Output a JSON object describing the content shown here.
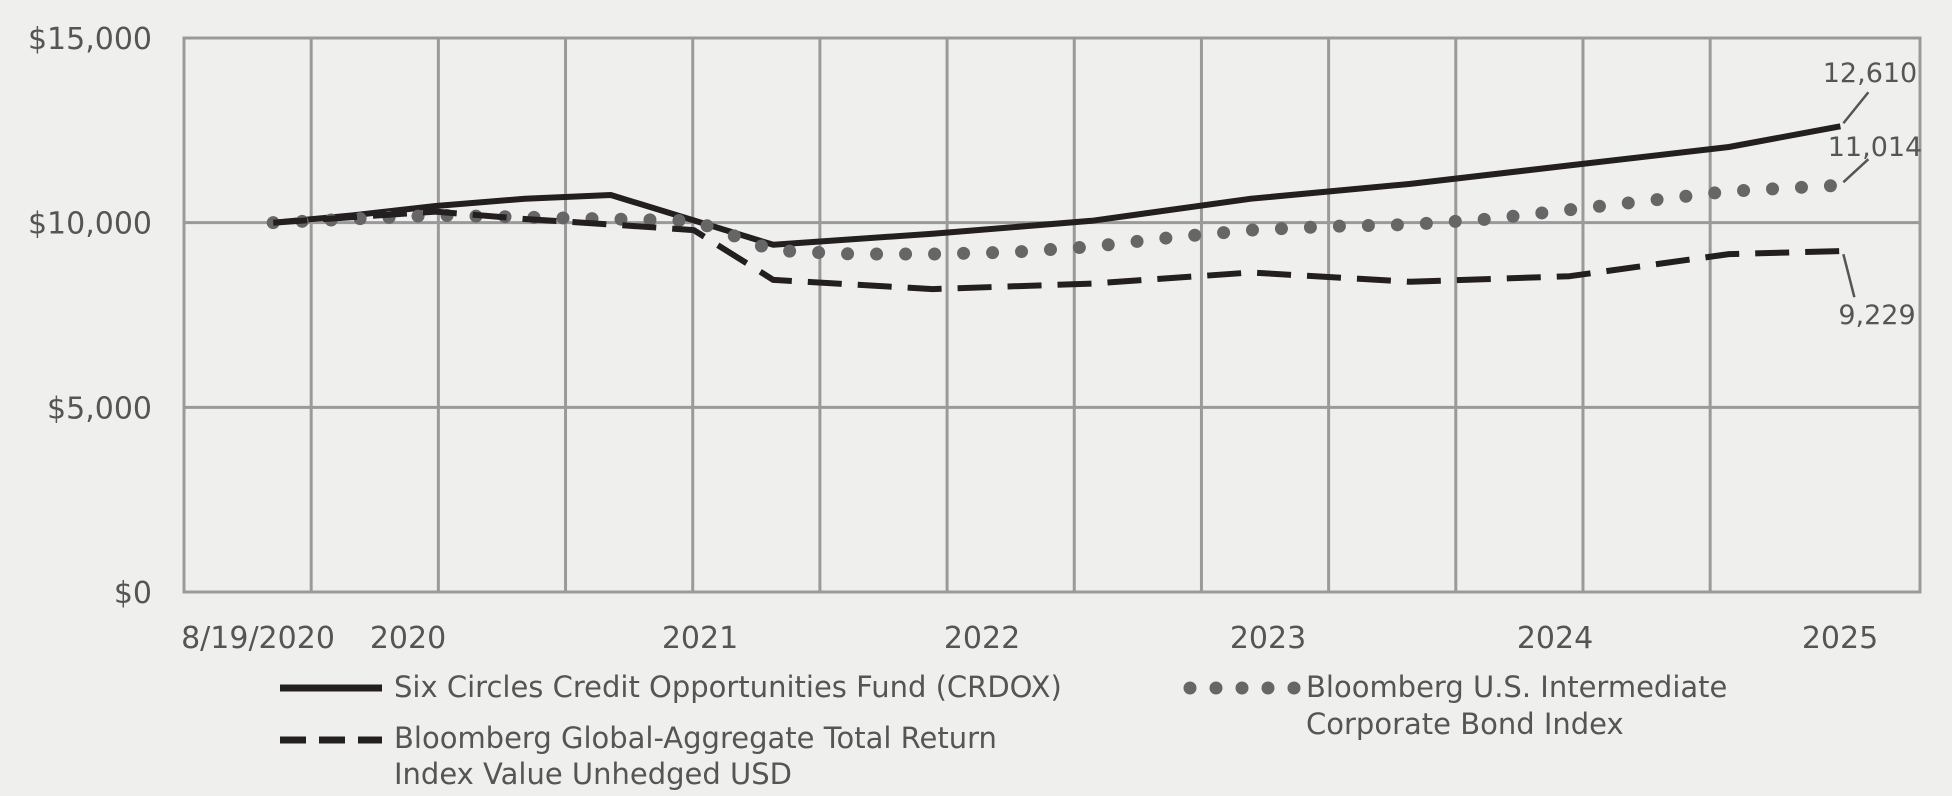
{
  "chart_data": {
    "type": "line",
    "title": "",
    "xlabel": "",
    "ylabel": "",
    "ylim": [
      0,
      15000
    ],
    "yticks": [
      0,
      5000,
      10000,
      15000
    ],
    "ytick_labels": [
      "$0",
      "$5,000",
      "$10,000",
      "$15,000"
    ],
    "xlim": [
      2020.4,
      2025.56
    ],
    "xticks": [
      2020.4,
      2020.6,
      2021.6,
      2022.6,
      2023.6,
      2024.6,
      2025.6
    ],
    "xtick_labels": [
      "8/19/2020",
      "2020",
      "2021",
      "2022",
      "2023",
      "2024",
      "2025"
    ],
    "grid": true,
    "series": [
      {
        "name": "Six Circles Credit Opportunities Fund (CRDOX)",
        "style": "solid",
        "color": "#231f20",
        "x": [
          2020.63,
          2020.88,
          2021.14,
          2021.42,
          2021.69,
          2022.2,
          2022.7,
          2023.2,
          2023.7,
          2024.2,
          2024.7,
          2025.2,
          2025.55
        ],
        "values": [
          10000,
          10200,
          10450,
          10650,
          10750,
          9400,
          9700,
          10050,
          10650,
          11050,
          11550,
          12050,
          12610
        ],
        "end_label": "12,610"
      },
      {
        "name": "Bloomberg U.S. Intermediate Corporate Bond Index",
        "style": "dotted",
        "color": "#666666",
        "x": [
          2020.63,
          2020.88,
          2021.14,
          2021.42,
          2021.69,
          2021.95,
          2022.2,
          2022.45,
          2022.7,
          2022.95,
          2023.2,
          2023.45,
          2023.7,
          2023.95,
          2024.2,
          2024.45,
          2024.7,
          2024.95,
          2025.2,
          2025.55
        ],
        "values": [
          10000,
          10100,
          10200,
          10150,
          10100,
          10050,
          9250,
          9150,
          9150,
          9200,
          9350,
          9600,
          9800,
          9900,
          9950,
          10100,
          10350,
          10600,
          10850,
          11014
        ],
        "end_label": "11,014"
      },
      {
        "name": "Bloomberg Global-Aggregate Total Return Index Value Unhedged USD",
        "style": "dashed",
        "color": "#231f20",
        "x": [
          2020.63,
          2020.88,
          2021.14,
          2021.42,
          2021.69,
          2021.95,
          2022.2,
          2022.7,
          2023.2,
          2023.7,
          2024.2,
          2024.7,
          2025.2,
          2025.55
        ],
        "values": [
          10000,
          10150,
          10300,
          10100,
          9950,
          9800,
          8450,
          8200,
          8350,
          8650,
          8400,
          8550,
          9150,
          9229
        ],
        "end_label": "9,229"
      }
    ],
    "legend": {
      "placement": "bottom",
      "entries": [
        "Six Circles Credit Opportunities Fund (CRDOX)",
        "Bloomberg U.S. Intermediate Corporate Bond Index",
        "Bloomberg Global-Aggregate Total Return Index Value Unhedged USD"
      ],
      "text_lines": [
        [
          "Six Circles Credit Opportunities Fund (CRDOX)"
        ],
        [
          "Bloomberg U.S. Intermediate",
          "Corporate Bond Index"
        ],
        [
          "Bloomberg Global-Aggregate Total Return",
          "Index Value Unhedged USD"
        ]
      ]
    },
    "colors": {
      "background": "#eff0ee",
      "grid": "#9a9a9a",
      "text": "#555555"
    }
  }
}
